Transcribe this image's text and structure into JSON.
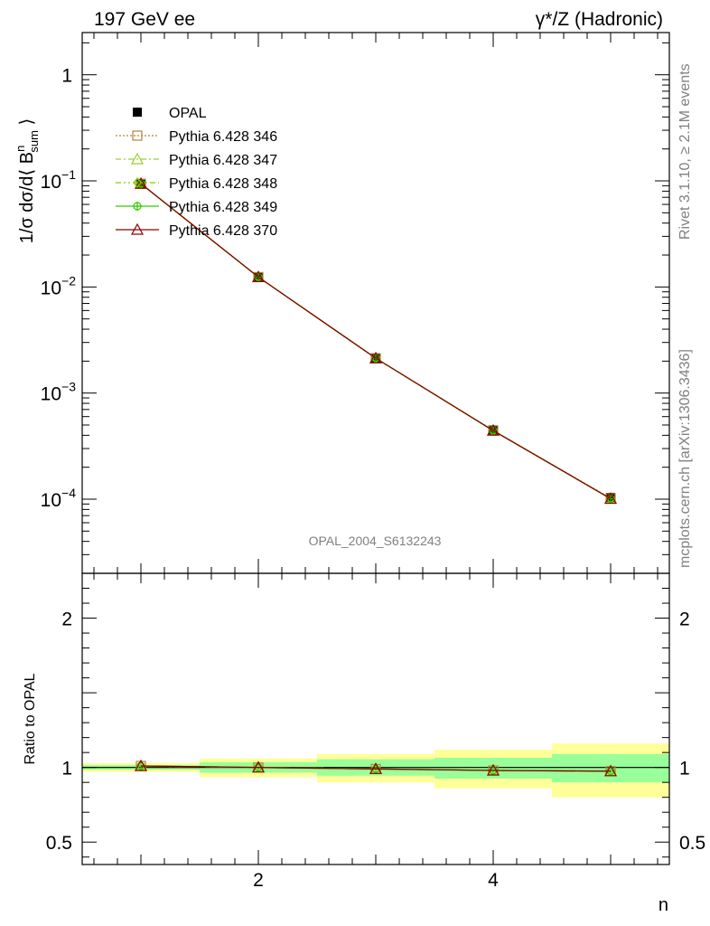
{
  "header": {
    "left_title": "197 GeV ee",
    "right_title": "γ*/Z (Hadronic)"
  },
  "side_labels": {
    "rivet": "Rivet 3.1.10, ≥ 2.1M events",
    "mcplots": "mcplots.cern.ch [arXiv:1306.3436]"
  },
  "watermark": "OPAL_2004_S6132243",
  "chart_data": [
    {
      "type": "line",
      "panel": "main",
      "ylabel": "1/σ dσ/d⟨ B^n_sum ⟩",
      "yscale": "log",
      "xlim": [
        0.5,
        5.5
      ],
      "ylim": [
        2e-05,
        2.5
      ],
      "y_ticks": [
        {
          "v": 1,
          "label": "1",
          "sup": ""
        },
        {
          "v": 0.1,
          "label": "10",
          "sup": "−1"
        },
        {
          "v": 0.01,
          "label": "10",
          "sup": "−2"
        },
        {
          "v": 0.001,
          "label": "10",
          "sup": "−3"
        },
        {
          "v": 0.0001,
          "label": "10",
          "sup": "−4"
        }
      ],
      "x": [
        1,
        2,
        3,
        4,
        5
      ],
      "data": {
        "name": "OPAL",
        "values": [
          0.093,
          0.0124,
          0.00215,
          0.00045,
          0.000104
        ],
        "color": "#000000"
      },
      "series": [
        {
          "name": "Pythia 6.428 346",
          "color": "#b5833d",
          "marker": "square",
          "dash": "2,2",
          "values": [
            0.094,
            0.0124,
            0.00213,
            0.000445,
            0.000102
          ]
        },
        {
          "name": "Pythia 6.428 347",
          "color": "#9acd32",
          "marker": "triangle",
          "dash": "6,3,2,3",
          "values": [
            0.094,
            0.0124,
            0.00213,
            0.000443,
            0.000101
          ]
        },
        {
          "name": "Pythia 6.428 348",
          "color": "#7cd000",
          "marker": "diamond",
          "dash": "6,3,2,3,2,3",
          "values": [
            0.094,
            0.0124,
            0.00213,
            0.000443,
            0.000101
          ]
        },
        {
          "name": "Pythia 6.428 349",
          "color": "#33cc00",
          "marker": "cross",
          "dash": "",
          "values": [
            0.094,
            0.0124,
            0.00213,
            0.000443,
            0.000101
          ]
        },
        {
          "name": "Pythia 6.428 370",
          "color": "#8b0000",
          "marker": "triangle",
          "dash": "",
          "values": [
            0.094,
            0.0124,
            0.00213,
            0.000443,
            0.000101
          ]
        }
      ],
      "legend_position": "top-left"
    },
    {
      "type": "line",
      "panel": "ratio",
      "ylabel": "Ratio to OPAL",
      "xlabel": "n",
      "xlim": [
        0.5,
        5.5
      ],
      "ylim": [
        0.35,
        2.3
      ],
      "x_ticks": [
        {
          "v": 2,
          "label": "2"
        },
        {
          "v": 4,
          "label": "4"
        }
      ],
      "y_ticks": [
        {
          "v": 0.5,
          "label": "0.5"
        },
        {
          "v": 1,
          "label": "1"
        },
        {
          "v": 2,
          "label": "2"
        }
      ],
      "bands": [
        {
          "x0": 0.5,
          "x1": 1.5,
          "inner": [
            0.985,
            1.015
          ],
          "outer": [
            0.97,
            1.03
          ]
        },
        {
          "x0": 1.5,
          "x1": 2.5,
          "inner": [
            0.965,
            1.035
          ],
          "outer": [
            0.935,
            1.06
          ]
        },
        {
          "x0": 2.5,
          "x1": 3.5,
          "inner": [
            0.945,
            1.055
          ],
          "outer": [
            0.9,
            1.09
          ]
        },
        {
          "x0": 3.5,
          "x1": 4.5,
          "inner": [
            0.925,
            1.065
          ],
          "outer": [
            0.86,
            1.12
          ]
        },
        {
          "x0": 4.5,
          "x1": 5.5,
          "inner": [
            0.9,
            1.09
          ],
          "outer": [
            0.8,
            1.16
          ]
        }
      ],
      "x": [
        1,
        2,
        3,
        4,
        5
      ],
      "ratio_values": [
        1.01,
        1.0,
        0.99,
        0.98,
        0.975
      ],
      "inner_band_color": "#99ff99",
      "outer_band_color": "#ffff99"
    }
  ]
}
